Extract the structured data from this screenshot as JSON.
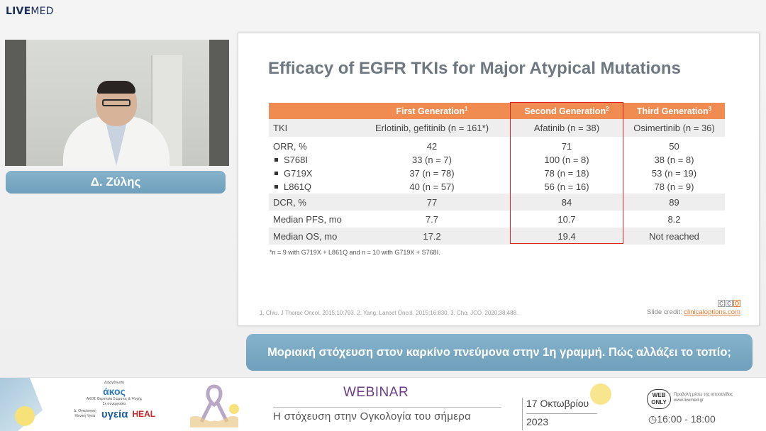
{
  "logo": {
    "part1": "LIVE",
    "part2": "MED"
  },
  "speaker": {
    "name": "Δ. Ζύλης"
  },
  "slide": {
    "title": "Efficacy of EGFR TKIs for Major Atypical Mutations",
    "columns": [
      {
        "label": "",
        "sup": ""
      },
      {
        "label": "First Generation",
        "sup": "1"
      },
      {
        "label": "Second Generation",
        "sup": "2"
      },
      {
        "label": "Third Generation",
        "sup": "3"
      }
    ],
    "rows": {
      "tki": [
        "TKI",
        "Erlotinib, gefitinib (n = 161*)",
        "Afatinib (n = 38)",
        "Osimertinib (n = 36)"
      ],
      "orr": {
        "label": "ORR, %",
        "values": [
          "42",
          "71",
          "50"
        ],
        "subrows": [
          {
            "label": "S768I",
            "values": [
              "33 (n = 7)",
              "100 (n = 8)",
              "38 (n = 8)"
            ]
          },
          {
            "label": "G719X",
            "values": [
              "37 (n = 78)",
              "78 (n = 18)",
              "53 (n = 19)"
            ]
          },
          {
            "label": "L861Q",
            "values": [
              "40 (n = 57)",
              "56 (n = 16)",
              "78 (n = 9)"
            ]
          }
        ]
      },
      "dcr": [
        "DCR, %",
        "77",
        "84",
        "89"
      ],
      "pfs": [
        "Median PFS, mo",
        "7.7",
        "10.7",
        "8.2"
      ],
      "os": [
        "Median OS, mo",
        "17.2",
        "19.4",
        "Not reached"
      ]
    },
    "footnote": "*n = 9 with G719X + L861Q and n = 10 with G719X + S768I.",
    "references": "1. Chiu. J Thorac Oncol. 2015;10:793. 2. Yang. Lancet Oncol. 2015;16:830. 3. Cho. JCO. 2020;38:488.",
    "credit_label": "Slide credit: ",
    "credit_link": "clinicaloptions.com",
    "cco_letters": [
      "C",
      "C",
      "O"
    ]
  },
  "caption": "Μοριακή στόχευση στον καρκίνο πνεύμονα στην 1η γραμμή. Πώς αλλάζει το τοπίο;",
  "footer": {
    "org_line1": "Διοργάνωση",
    "org_name": "άκος",
    "org_line2": "ΑΚΟΣ Θεραπεία Σώματος & Ψυχής",
    "org_line3": "Σε συνεργασία",
    "org_line4": "Δ. Ογκολογική Κλινική Υγεία",
    "sponsor1": "υγεία",
    "sponsor2": "HEAL",
    "webinar": "WEBINAR",
    "subtitle": "Η στόχευση στην Ογκολογία του σήμερα",
    "date_day": "17 Οκτωβρίου",
    "date_year": "2023",
    "webonly": "WEB ONLY",
    "webonly_note1": "Προβολή μέσω της ιστοσελίδας",
    "webonly_note2": "www.livemed.gr",
    "time": "16:00 - 18:00"
  },
  "colors": {
    "header_orange": "#f08c52",
    "highlight_red": "#e0231e",
    "bar_blue": "#7aa9c4",
    "webinar_purple": "#6b3d8c"
  }
}
